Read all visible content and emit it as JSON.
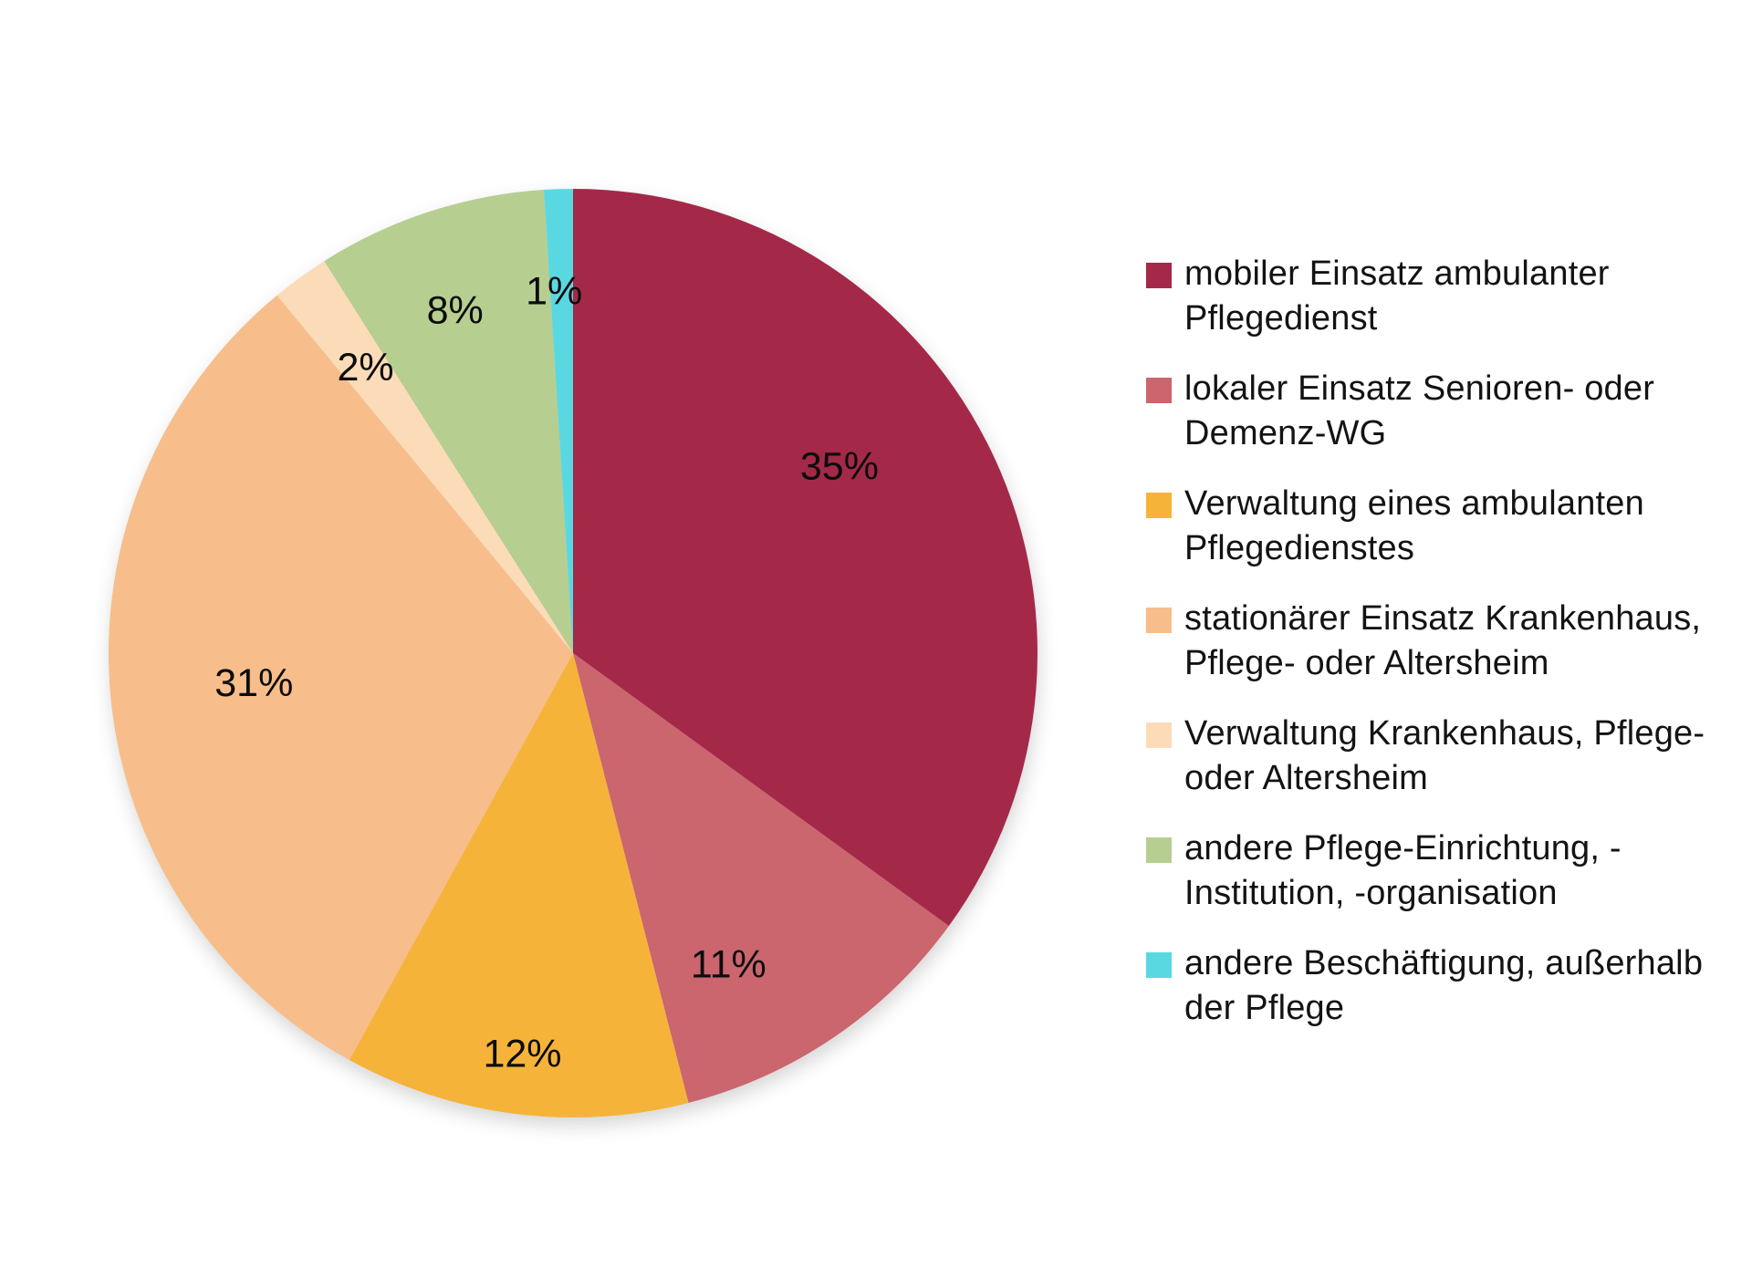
{
  "chart_data": {
    "type": "pie",
    "title": "",
    "unit": "percent",
    "start_angle_deg": 0,
    "direction": "clockwise",
    "legend_position": "right",
    "background_color": "#ffffff",
    "label_color": "#0c0c0c",
    "slices": [
      {
        "label": "mobiler Einsatz ambulanter\nPflegedienst",
        "value": 35,
        "display": "35%",
        "color": "#a42949"
      },
      {
        "label": "lokaler Einsatz Senioren- oder\nDemenz-WG",
        "value": 11,
        "display": "11%",
        "color": "#cb656e"
      },
      {
        "label": "Verwaltung eines ambulanten\nPflegedienstes",
        "value": 12,
        "display": "12%",
        "color": "#f6b33a"
      },
      {
        "label": "stationärer Einsatz Krankenhaus,\nPflege- oder Altersheim",
        "value": 31,
        "display": "31%",
        "color": "#f7be8b"
      },
      {
        "label": "Verwaltung Krankenhaus, Pflege-\noder Altersheim",
        "value": 2,
        "display": "2%",
        "color": "#fcdbb8"
      },
      {
        "label": "andere Pflege-Einrichtung, -\nInstitution, -organisation",
        "value": 8,
        "display": "8%",
        "color": "#b7ce91"
      },
      {
        "label": "andere Beschäftigung, außerhalb\nder Pflege",
        "value": 1,
        "display": "1%",
        "color": "#5ad8e2"
      }
    ]
  }
}
